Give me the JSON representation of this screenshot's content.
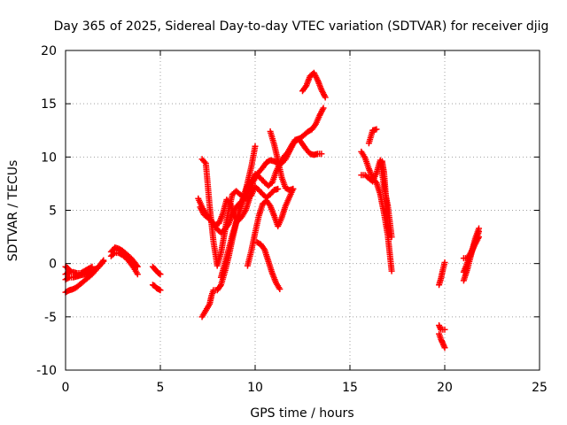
{
  "chart_data": {
    "type": "scatter",
    "title": "Day 365 of 2025, Sidereal Day-to-day VTEC variation (SDTVAR) for receiver djig",
    "xlabel": "GPS time / hours",
    "ylabel": "SDTVAR / TECUs",
    "xlim": [
      0,
      25
    ],
    "ylim": [
      -10,
      20
    ],
    "xticks": [
      0,
      5,
      10,
      15,
      20,
      25
    ],
    "yticks": [
      -10,
      -5,
      0,
      5,
      10,
      15,
      20
    ],
    "grid": true,
    "legend": "none",
    "marker": "+",
    "color": "#ff0000",
    "series": [
      {
        "x": [
          0.0,
          0.2,
          0.4,
          0.6,
          0.8,
          1.0,
          1.2,
          1.4,
          1.6,
          1.8,
          2.0
        ],
        "y": [
          -2.7,
          -2.5,
          -2.4,
          -2.2,
          -1.9,
          -1.6,
          -1.3,
          -1.0,
          -0.6,
          -0.2,
          0.2
        ]
      },
      {
        "x": [
          0.0,
          0.2,
          0.4,
          0.6,
          0.8,
          1.0,
          1.2,
          1.4,
          1.6,
          1.8,
          2.0
        ],
        "y": [
          -1.5,
          -1.3,
          -1.3,
          -1.2,
          -1.1,
          -1.0,
          -0.9,
          -0.7,
          -0.5,
          -0.2,
          0.3
        ]
      },
      {
        "x": [
          0.0,
          0.2,
          0.4,
          0.6,
          0.8,
          1.0,
          1.2,
          1.4
        ],
        "y": [
          -1.0,
          -0.8,
          -0.8,
          -0.9,
          -0.9,
          -0.7,
          -0.5,
          -0.3
        ]
      },
      {
        "x": [
          0.0,
          0.1,
          0.2,
          0.3
        ],
        "y": [
          -0.3,
          -0.4,
          -0.6,
          -0.8
        ]
      },
      {
        "x": [
          2.4,
          2.6,
          2.8,
          3.0,
          3.2,
          3.4,
          3.6,
          3.8
        ],
        "y": [
          1.1,
          1.5,
          1.4,
          1.2,
          0.9,
          0.6,
          0.2,
          -0.3
        ]
      },
      {
        "x": [
          2.4,
          2.6,
          2.8,
          3.0,
          3.2,
          3.4,
          3.6,
          3.8
        ],
        "y": [
          0.7,
          1.0,
          1.0,
          0.8,
          0.5,
          0.1,
          -0.4,
          -1.0
        ]
      },
      {
        "x": [
          4.6,
          4.7,
          4.8,
          4.9,
          5.0
        ],
        "y": [
          -0.3,
          -0.5,
          -0.7,
          -0.9,
          -1.0
        ]
      },
      {
        "x": [
          4.6,
          4.7,
          4.8,
          4.9,
          5.0
        ],
        "y": [
          -2.0,
          -2.1,
          -2.3,
          -2.4,
          -2.5
        ]
      },
      {
        "x": [
          7.2,
          7.4,
          7.6,
          7.7,
          7.8,
          8.0,
          8.2,
          8.4,
          8.6,
          8.8,
          9.0,
          9.2,
          9.4,
          9.6,
          9.8,
          10.0,
          10.2,
          10.4,
          10.6,
          10.8,
          11.0,
          11.2,
          11.4,
          11.6,
          11.8,
          12.0,
          12.2,
          12.4,
          12.6,
          12.8,
          13.0,
          13.2,
          13.4,
          13.6
        ],
        "y": [
          -5.0,
          -4.4,
          -3.8,
          -3.0,
          -2.5,
          -2.5,
          -2.0,
          -0.8,
          0.6,
          2.3,
          3.8,
          5.2,
          6.4,
          7.3,
          7.8,
          8.1,
          8.6,
          9.0,
          9.5,
          9.7,
          9.6,
          9.4,
          9.4,
          9.8,
          10.5,
          11.2,
          11.6,
          11.8,
          12.1,
          12.4,
          12.6,
          13.1,
          13.9,
          14.6
        ]
      },
      {
        "x": [
          7.1,
          7.3,
          7.5,
          7.7,
          7.9,
          8.1,
          8.3,
          8.5,
          8.7,
          8.9,
          9.1,
          9.3,
          9.5,
          9.7,
          9.9,
          10.1,
          10.3,
          10.5,
          10.7,
          10.9,
          11.1,
          11.3,
          11.5,
          11.7,
          11.9,
          12.1,
          12.3,
          12.5,
          12.7,
          12.9,
          13.1,
          13.3,
          13.5
        ],
        "y": [
          5.3,
          4.6,
          4.3,
          4.0,
          3.6,
          3.8,
          4.7,
          6.0,
          5.6,
          4.5,
          4.0,
          4.4,
          5.0,
          6.1,
          7.7,
          8.3,
          8.0,
          7.6,
          7.3,
          7.6,
          8.6,
          9.4,
          10.0,
          10.4,
          11.0,
          11.6,
          11.7,
          11.2,
          10.7,
          10.3,
          10.2,
          10.3,
          10.3
        ]
      },
      {
        "x": [
          7.0,
          7.2,
          7.4,
          7.6,
          7.8,
          8.0,
          8.2,
          8.4,
          8.6,
          8.8,
          9.0,
          9.2,
          9.4,
          9.6,
          9.8,
          10.0
        ],
        "y": [
          6.1,
          5.3,
          4.7,
          4.2,
          3.7,
          3.2,
          2.9,
          3.2,
          3.7,
          4.6,
          5.3,
          5.7,
          6.0,
          6.6,
          7.6,
          8.4
        ]
      },
      {
        "x": [
          7.2,
          7.4,
          7.6,
          7.8,
          8.0,
          8.2,
          8.4,
          8.6,
          8.8,
          9.0,
          9.2,
          9.4,
          9.6,
          9.8,
          10.0,
          10.2,
          10.4,
          10.6,
          10.8,
          11.0,
          11.2
        ],
        "y": [
          9.8,
          9.4,
          5.4,
          2.1,
          -0.2,
          1.0,
          3.0,
          5.0,
          6.5,
          6.8,
          6.5,
          6.2,
          6.1,
          6.4,
          7.2,
          6.9,
          6.5,
          6.2,
          6.5,
          6.9,
          7.0
        ]
      },
      {
        "x": [
          8.2,
          8.4,
          8.6,
          8.8,
          9.0,
          9.2,
          9.4,
          9.6,
          9.8,
          10.0
        ],
        "y": [
          -1.3,
          0.0,
          1.3,
          2.7,
          3.9,
          5.0,
          6.2,
          7.6,
          9.1,
          11.0
        ]
      },
      {
        "x": [
          10.1,
          10.3,
          10.5,
          10.7,
          10.9,
          11.1,
          11.3
        ],
        "y": [
          2.0,
          1.8,
          1.3,
          0.2,
          -0.9,
          -1.8,
          -2.4
        ]
      },
      {
        "x": [
          9.6,
          9.8,
          10.0,
          10.2,
          10.4,
          10.6,
          10.8,
          11.0,
          11.2,
          11.4,
          11.6,
          11.8,
          12.0
        ],
        "y": [
          -0.2,
          1.2,
          2.9,
          4.5,
          5.6,
          5.9,
          5.4,
          4.5,
          3.5,
          4.3,
          5.4,
          6.2,
          7.0
        ]
      },
      {
        "x": [
          10.8,
          11.0,
          11.2,
          11.4,
          11.6,
          11.8,
          12.0
        ],
        "y": [
          12.4,
          11.2,
          9.7,
          8.1,
          7.1,
          6.9,
          7.0
        ]
      },
      {
        "x": [
          12.5,
          12.7,
          12.9,
          13.1,
          13.3,
          13.5,
          13.7
        ],
        "y": [
          16.2,
          16.7,
          17.6,
          17.9,
          17.2,
          16.3,
          15.6
        ]
      },
      {
        "x": [
          15.6,
          15.8,
          16.0,
          16.2,
          16.4,
          16.6,
          16.8,
          17.0,
          17.2
        ],
        "y": [
          10.5,
          9.9,
          8.9,
          8.0,
          7.6,
          6.5,
          4.7,
          2.6,
          -0.7
        ]
      },
      {
        "x": [
          15.6,
          15.8,
          16.0,
          16.2,
          16.4,
          16.6,
          16.8,
          17.0,
          17.2
        ],
        "y": [
          8.3,
          8.3,
          8.0,
          7.7,
          8.5,
          9.7,
          7.2,
          5.4,
          2.5
        ]
      },
      {
        "x": [
          16.0,
          16.2,
          16.4
        ],
        "y": [
          11.3,
          12.5,
          12.6
        ]
      },
      {
        "x": [
          16.6,
          16.7,
          16.8,
          16.9,
          17.0
        ],
        "y": [
          9.4,
          9.6,
          8.5,
          6.2,
          3.4
        ]
      },
      {
        "x": [
          19.7,
          19.8,
          19.9,
          20.0
        ],
        "y": [
          -2.0,
          -1.4,
          -0.6,
          0.1
        ]
      },
      {
        "x": [
          19.7,
          19.8,
          19.9,
          20.0
        ],
        "y": [
          -5.8,
          -6.2,
          -6.2,
          -6.2
        ]
      },
      {
        "x": [
          19.7,
          19.8,
          19.9,
          20.0
        ],
        "y": [
          -6.6,
          -7.1,
          -7.5,
          -7.9
        ]
      },
      {
        "x": [
          21.0,
          21.2,
          21.4,
          21.6,
          21.8
        ],
        "y": [
          -1.6,
          -0.5,
          0.9,
          2.3,
          3.3
        ]
      },
      {
        "x": [
          21.0,
          21.2,
          21.4,
          21.6,
          21.8
        ],
        "y": [
          -0.8,
          0.1,
          1.0,
          1.8,
          2.5
        ]
      },
      {
        "x": [
          21.0,
          21.2,
          21.4,
          21.6,
          21.8
        ],
        "y": [
          0.5,
          0.5,
          1.1,
          2.0,
          3.0
        ]
      }
    ]
  }
}
